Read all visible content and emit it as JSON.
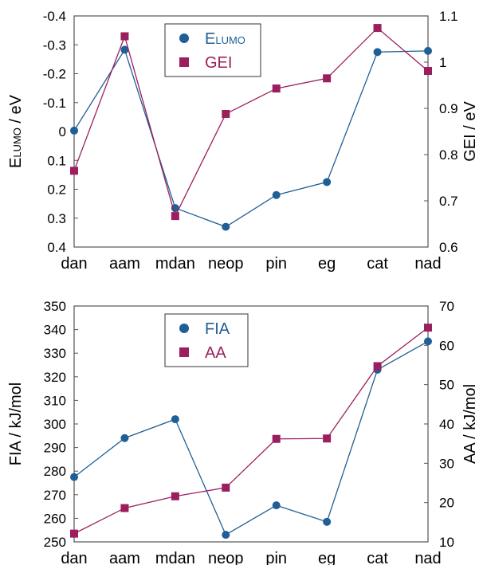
{
  "colors": {
    "blue": "#1f5f96",
    "maroon": "#9b1f5e"
  },
  "chart_data": [
    {
      "type": "line",
      "categories": [
        "dan",
        "aam",
        "mdan",
        "neop",
        "pin",
        "eg",
        "cat",
        "nad"
      ],
      "ylabel_left": {
        "main": "E",
        "sub": "LUMO",
        "tail": " / eV"
      },
      "ylabel_right": "GEI / eV",
      "ylim_left": [
        -0.4,
        0.4
      ],
      "left_axis_inverted": true,
      "yticks_left": [
        "-0.4",
        "-0.3",
        "-0.2",
        "-0.1",
        "0",
        "0.1",
        "0.2",
        "0.3",
        "0.4"
      ],
      "ylim_right": [
        0.6,
        1.1
      ],
      "yticks_right": [
        "0.6",
        "0.7",
        "0.8",
        "0.9",
        "1",
        "1.1"
      ],
      "grid": false,
      "legend_position": "top-center",
      "series": [
        {
          "name": "E",
          "name_sub": "LUMO",
          "axis": "left",
          "marker": "circle",
          "color": "#1f5f96",
          "values": [
            -0.003,
            -0.283,
            0.265,
            0.33,
            0.22,
            0.175,
            -0.275,
            -0.279
          ]
        },
        {
          "name": "GEI",
          "axis": "right",
          "marker": "square",
          "color": "#9b1f5e",
          "values": [
            0.765,
            1.056,
            0.667,
            0.888,
            0.943,
            0.965,
            1.074,
            0.981
          ]
        }
      ]
    },
    {
      "type": "line",
      "categories": [
        "dan",
        "aam",
        "mdan",
        "neop",
        "pin",
        "eg",
        "cat",
        "nad"
      ],
      "ylabel_left": "FIA / kJ/mol",
      "ylabel_right": "AA / kJ/mol",
      "ylim_left": [
        250,
        350
      ],
      "yticks_left": [
        "250",
        "260",
        "270",
        "280",
        "290",
        "300",
        "310",
        "320",
        "330",
        "340",
        "350"
      ],
      "ylim_right": [
        10,
        70
      ],
      "yticks_right": [
        "10",
        "20",
        "30",
        "40",
        "50",
        "60",
        "70"
      ],
      "grid": false,
      "legend_position": "top-center",
      "series": [
        {
          "name": "FIA",
          "axis": "left",
          "marker": "circle",
          "color": "#1f5f96",
          "values": [
            277.5,
            294,
            302,
            253,
            265.5,
            258.5,
            323,
            335
          ]
        },
        {
          "name": "AA",
          "axis": "right",
          "marker": "square",
          "color": "#9b1f5e",
          "values": [
            12.1,
            18.6,
            21.6,
            23.8,
            36.2,
            36.3,
            54.7,
            64.5
          ]
        }
      ]
    }
  ]
}
